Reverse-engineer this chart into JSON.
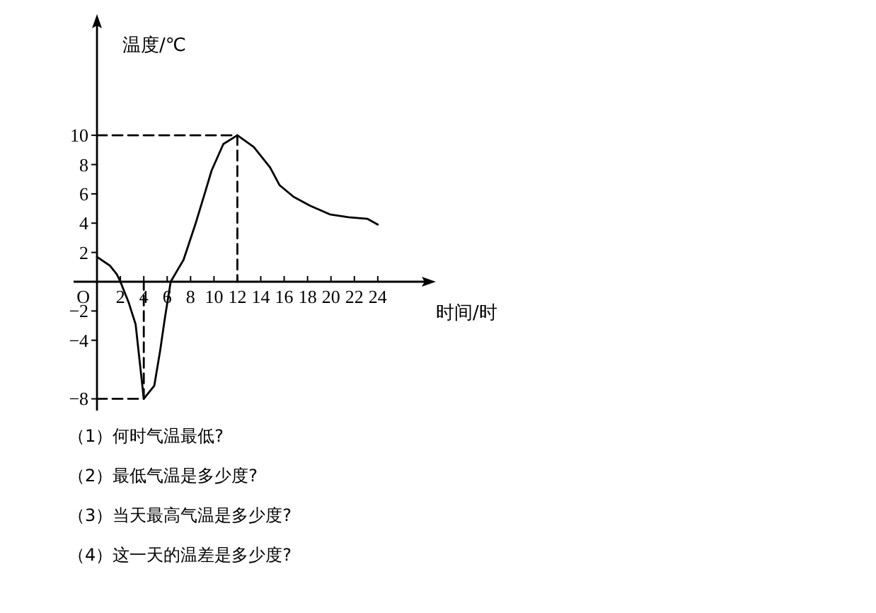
{
  "chart_data": {
    "type": "line",
    "xlabel": "时间/时",
    "ylabel": "温度/℃",
    "xlim": [
      -2,
      28
    ],
    "ylim": [
      -8.8,
      17.5
    ],
    "xticks": [
      2,
      4,
      6,
      8,
      10,
      12,
      14,
      16,
      18,
      20,
      22,
      24
    ],
    "yticks": [
      -8,
      -4,
      -2,
      2,
      4,
      6,
      8,
      10
    ],
    "series": [
      {
        "color": "#000000",
        "line_style": "solid",
        "x": [
          0,
          1.1,
          1.7,
          2,
          2.7,
          3.3,
          4,
          4.9,
          5.4,
          5.8,
          6.3,
          7.4,
          8.4,
          9.2,
          9.8,
          10.8,
          12,
          13.4,
          14.8,
          15.6,
          16.8,
          18.2,
          19.9,
          21.5,
          23.1,
          24
        ],
        "values": [
          1.7,
          1.1,
          0.5,
          0,
          -1.4,
          -2.9,
          -8,
          -7.1,
          -4.7,
          -2.5,
          0,
          1.5,
          3.9,
          6,
          7.6,
          9.4,
          10,
          9.2,
          7.8,
          6.6,
          5.8,
          5.2,
          4.6,
          4.4,
          4.3,
          3.9
        ]
      },
      {
        "color": "#000000",
        "line_style": "dashed",
        "x": [
          0,
          12,
          12
        ],
        "values": [
          10,
          10,
          0
        ]
      },
      {
        "color": "#000000",
        "line_style": "dashed",
        "x": [
          0,
          4,
          4
        ],
        "values": [
          -8,
          -8,
          0
        ]
      }
    ],
    "annotations": [
      "O",
      "（1）何时气温最低?",
      "（2）最低气温是多少度?",
      "（3）当天最高气温是多少度?",
      "（4）这一天的温差是多少度?"
    ]
  }
}
